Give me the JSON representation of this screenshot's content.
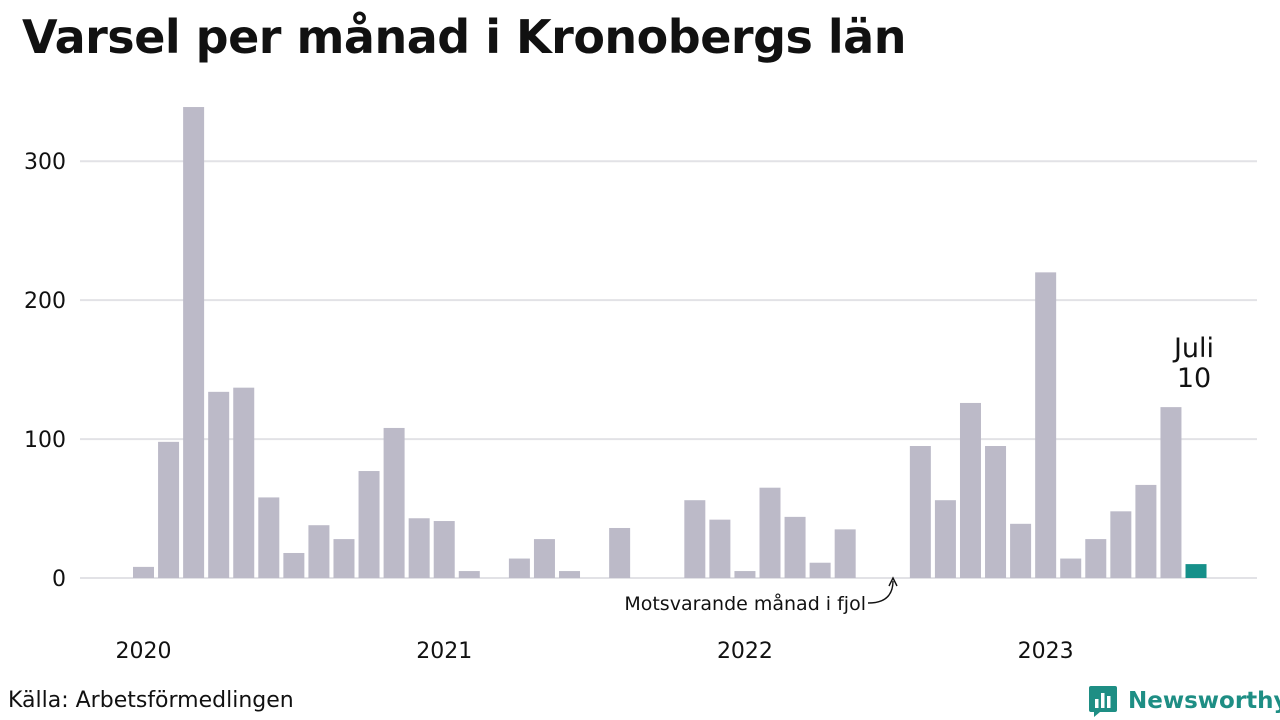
{
  "title": "Varsel per månad i Kronobergs län",
  "source": "Källa: Arbetsförmedlingen",
  "logo": {
    "icon": "newsworthy-logo-icon",
    "text": "Newsworthy"
  },
  "colors": {
    "bar": "#bcbac8",
    "highlight": "#16908a",
    "previous": "#444444",
    "grid": "#e2e2e6"
  },
  "chart_data": {
    "type": "bar",
    "title": "Varsel per månad i Kronobergs län",
    "xlabel": "",
    "ylabel": "",
    "ylim": [
      0,
      340
    ],
    "yticks": [
      0,
      100,
      200,
      300
    ],
    "year_labels": [
      "2020",
      "2021",
      "2022",
      "2023"
    ],
    "grid": true,
    "categories": [
      "2020-01",
      "2020-02",
      "2020-03",
      "2020-04",
      "2020-05",
      "2020-06",
      "2020-07",
      "2020-08",
      "2020-09",
      "2020-10",
      "2020-11",
      "2020-12",
      "2021-01",
      "2021-02",
      "2021-03",
      "2021-04",
      "2021-05",
      "2021-06",
      "2021-07",
      "2021-08",
      "2021-09",
      "2021-10",
      "2021-11",
      "2021-12",
      "2022-01",
      "2022-02",
      "2022-03",
      "2022-04",
      "2022-05",
      "2022-06",
      "2022-07",
      "2022-08",
      "2022-09",
      "2022-10",
      "2022-11",
      "2022-12",
      "2023-01",
      "2023-02",
      "2023-03",
      "2023-04",
      "2023-05",
      "2023-06",
      "2023-07"
    ],
    "values": [
      8,
      98,
      339,
      134,
      137,
      58,
      18,
      38,
      28,
      77,
      108,
      43,
      41,
      5,
      0,
      14,
      28,
      5,
      0,
      36,
      0,
      0,
      56,
      42,
      5,
      65,
      44,
      11,
      35,
      0,
      0,
      95,
      56,
      126,
      95,
      39,
      220,
      14,
      28,
      48,
      67,
      123,
      10
    ],
    "highlight": {
      "month": "Juli",
      "value": "10"
    },
    "previous_year_annotation": "Motsvarande månad i fjol"
  }
}
